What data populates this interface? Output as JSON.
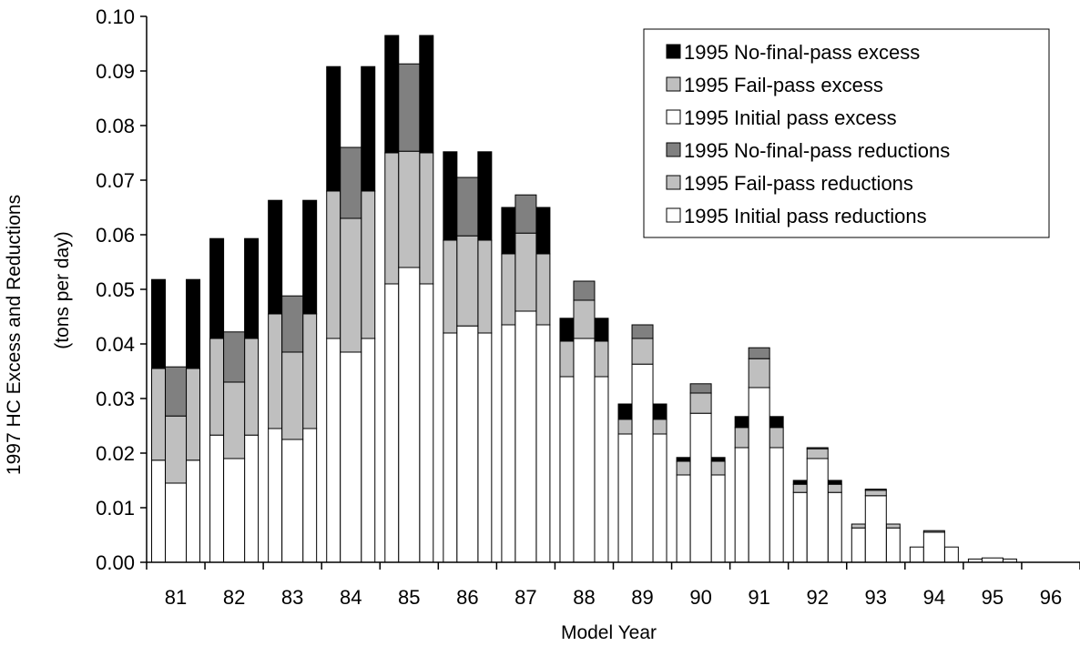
{
  "chart_data": {
    "type": "bar",
    "subtype": "stacked-paired",
    "xlabel": "Model Year",
    "ylabel_lines": [
      "1997 HC Excess and Reductions",
      "(tons per day)"
    ],
    "ylim": [
      0,
      0.1
    ],
    "yticks": [
      "0.00",
      "0.01",
      "0.02",
      "0.03",
      "0.04",
      "0.05",
      "0.06",
      "0.07",
      "0.08",
      "0.09",
      "0.10"
    ],
    "ytick_values": [
      0,
      0.01,
      0.02,
      0.03,
      0.04,
      0.05,
      0.06,
      0.07,
      0.08,
      0.09,
      0.1
    ],
    "categories": [
      "81",
      "82",
      "83",
      "84",
      "85",
      "86",
      "87",
      "88",
      "89",
      "90",
      "91",
      "92",
      "93",
      "94",
      "95",
      "96"
    ],
    "legend_position": "top-right",
    "excess_series": [
      {
        "name": "1995 Initial pass excess",
        "color": "#ffffff",
        "values": [
          0.0187,
          0.0233,
          0.0245,
          0.041,
          0.051,
          0.042,
          0.0435,
          0.034,
          0.0235,
          0.016,
          0.021,
          0.0128,
          0.0063,
          0.0028,
          0.0006,
          0.0
        ]
      },
      {
        "name": "1995 Fail-pass excess",
        "color": "#bfbfbf",
        "values": [
          0.0168,
          0.0177,
          0.021,
          0.027,
          0.024,
          0.017,
          0.013,
          0.0065,
          0.0027,
          0.0025,
          0.0037,
          0.0015,
          0.0007,
          0.0,
          0.0,
          0.0
        ]
      },
      {
        "name": "1995 No-final-pass excess",
        "color": "#000000",
        "values": [
          0.0163,
          0.0183,
          0.0208,
          0.0228,
          0.0215,
          0.0162,
          0.0085,
          0.0042,
          0.0028,
          0.0007,
          0.002,
          0.0007,
          0.0,
          0.0,
          0.0,
          0.0
        ]
      }
    ],
    "reduction_series": [
      {
        "name": "1995 Initial pass reductions",
        "color": "#ffffff",
        "values": [
          0.0145,
          0.019,
          0.0225,
          0.0385,
          0.054,
          0.0433,
          0.046,
          0.041,
          0.0363,
          0.0273,
          0.032,
          0.019,
          0.0122,
          0.0055,
          0.0008,
          0.0
        ]
      },
      {
        "name": "1995 Fail-pass reductions",
        "color": "#bfbfbf",
        "values": [
          0.0123,
          0.014,
          0.016,
          0.0245,
          0.0213,
          0.0165,
          0.0143,
          0.007,
          0.0047,
          0.0037,
          0.0053,
          0.0018,
          0.001,
          0.0,
          0.0,
          0.0
        ]
      },
      {
        "name": "1995 No-final-pass reductions",
        "color": "#808080",
        "values": [
          0.009,
          0.0092,
          0.0103,
          0.013,
          0.016,
          0.0107,
          0.007,
          0.0035,
          0.0025,
          0.0017,
          0.002,
          0.0002,
          0.0002,
          0.0003,
          0.0,
          0.0
        ]
      }
    ],
    "legend": [
      {
        "label": "1995 No-final-pass excess",
        "color": "#000000"
      },
      {
        "label": "1995 Fail-pass excess",
        "color": "#bfbfbf"
      },
      {
        "label": "1995 Initial pass excess",
        "color": "#ffffff"
      },
      {
        "label": "1995 No-final-pass reductions",
        "color": "#808080"
      },
      {
        "label": "1995 Fail-pass reductions",
        "color": "#bfbfbf"
      },
      {
        "label": "1995 Initial pass reductions",
        "color": "#ffffff"
      }
    ]
  }
}
